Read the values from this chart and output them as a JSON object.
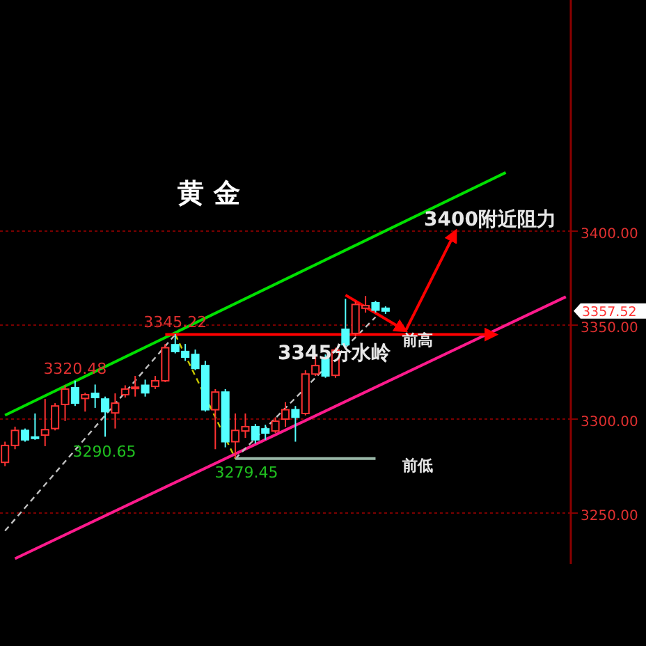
{
  "chart_data": {
    "type": "candlestick",
    "title": "黄 金",
    "categories": [
      null,
      null,
      null,
      null,
      null,
      null,
      null,
      null,
      null,
      null,
      null,
      null,
      null,
      null,
      null,
      null,
      null,
      null,
      null,
      null,
      null,
      null,
      null,
      null,
      null,
      null,
      null,
      null,
      null,
      null,
      null,
      null,
      null,
      null,
      null,
      null,
      null,
      null,
      null,
      null,
      null,
      null,
      null,
      null,
      null,
      null,
      null,
      null,
      null,
      null,
      null,
      null,
      null,
      null,
      null,
      null,
      null
    ],
    "ylim": [
      3223,
      3523
    ],
    "yticks": [
      {
        "value": 3250,
        "label": "3250.00"
      },
      {
        "value": 3300,
        "label": "3300.00"
      },
      {
        "value": 3350,
        "label": "3350.00"
      },
      {
        "value": 3400,
        "label": "3400.00"
      }
    ],
    "grid": "y",
    "ohlc": [
      [
        3277,
        3288,
        3275,
        3286
      ],
      [
        3286,
        3296,
        3284,
        3294
      ],
      [
        3294,
        3295,
        3288,
        3289
      ],
      [
        3290.5,
        3303,
        3289,
        3290
      ],
      [
        3291.5,
        3310.7,
        3285.6,
        3294.4
      ],
      [
        3295,
        3308.5,
        3294,
        3307
      ],
      [
        3307.8,
        3318,
        3299,
        3316
      ],
      [
        3316.7,
        3320.48,
        3307,
        3308.5
      ],
      [
        3311,
        3314,
        3304,
        3313
      ],
      [
        3313.7,
        3318.4,
        3306,
        3311.5
      ],
      [
        3310.7,
        3312,
        3290.65,
        3304
      ],
      [
        3303.3,
        3313.7,
        3295,
        3308.5
      ],
      [
        3313,
        3318,
        3311.5,
        3316
      ],
      [
        3316.6,
        3323,
        3312,
        3317
      ],
      [
        3318,
        3321,
        3312,
        3314
      ],
      [
        3317.4,
        3323,
        3316,
        3320.4
      ],
      [
        3320.4,
        3340,
        3319.7,
        3338
      ],
      [
        3339.6,
        3345.22,
        3335,
        3336
      ],
      [
        3336,
        3340,
        3331,
        3333
      ],
      [
        3334.4,
        3337,
        3326,
        3327
      ],
      [
        3328.5,
        3331,
        3304,
        3305
      ],
      [
        3305,
        3316,
        3284,
        3314.4
      ],
      [
        3314.4,
        3316,
        3285,
        3288
      ],
      [
        3288,
        3303,
        3279.45,
        3294
      ],
      [
        3293.7,
        3303,
        3290,
        3296
      ],
      [
        3296,
        3297.4,
        3287,
        3289
      ],
      [
        3294.8,
        3297,
        3289,
        3292.6
      ],
      [
        3293.7,
        3301,
        3292.6,
        3298.9
      ],
      [
        3300,
        3309,
        3296,
        3305
      ],
      [
        3305,
        3307,
        3288,
        3301
      ],
      [
        3303,
        3326,
        3302,
        3324
      ],
      [
        3324,
        3334,
        3323,
        3328.5
      ],
      [
        3332,
        3334.4,
        3322,
        3323
      ],
      [
        3323.3,
        3338,
        3322,
        3336.7
      ],
      [
        3347.8,
        3364,
        3338,
        3339.6
      ],
      [
        3345.6,
        3362.6,
        3344,
        3361
      ],
      [
        3359,
        3365.5,
        3356.7,
        3360.4
      ],
      [
        3361.9,
        3363,
        3356.7,
        3358
      ],
      [
        3359,
        3360,
        3356,
        3357.52
      ],
      null,
      null,
      null,
      null,
      null,
      null,
      null,
      null,
      null,
      null,
      null,
      null,
      null,
      null,
      null,
      null,
      null,
      null
    ],
    "colors": [
      "#ff3232",
      "#ff3232",
      "#54ffff",
      "#54ffff",
      "#ff3232",
      "#ff3232",
      "#ff3232",
      "#54ffff",
      "#ff3232",
      "#54ffff",
      "#54ffff",
      "#ff3232",
      "#ff3232",
      "#ff3232",
      "#54ffff",
      "#ff3232",
      "#ff3232",
      "#54ffff",
      "#54ffff",
      "#54ffff",
      "#54ffff",
      "#ff3232",
      "#54ffff",
      "#ff3232",
      "#ff3232",
      "#54ffff",
      "#54ffff",
      "#ff3232",
      "#ff3232",
      "#54ffff",
      "#ff3232",
      "#ff3232",
      "#54ffff",
      "#ff3232",
      "#54ffff",
      "#ff3232",
      "#ff3232",
      "#54ffff",
      "#54ffff",
      null,
      null,
      null,
      null,
      null,
      null,
      null,
      null,
      null,
      null,
      null,
      null,
      null,
      null,
      null,
      null,
      null,
      null
    ],
    "series": [
      {
        "type": "line",
        "color": "#00e000",
        "values": [
          3302.1,
          null,
          null,
          null,
          null,
          null,
          null,
          null,
          null,
          null,
          null,
          null,
          null,
          null,
          null,
          null,
          null,
          null,
          null,
          null,
          null,
          null,
          null,
          null,
          null,
          null,
          null,
          null,
          null,
          null,
          null,
          null,
          null,
          null,
          null,
          null,
          null,
          null,
          null,
          null,
          null,
          null,
          null,
          null,
          null,
          null,
          null,
          null,
          null,
          null,
          3431.2,
          null,
          null,
          null,
          null,
          null,
          null
        ]
      },
      {
        "type": "line",
        "color": "#ff1a8c",
        "values": [
          null,
          3225.8,
          null,
          null,
          null,
          null,
          null,
          null,
          null,
          null,
          null,
          null,
          null,
          null,
          null,
          null,
          null,
          null,
          null,
          null,
          null,
          null,
          null,
          null,
          null,
          null,
          null,
          null,
          null,
          null,
          null,
          null,
          null,
          null,
          null,
          null,
          null,
          null,
          null,
          null,
          null,
          null,
          null,
          null,
          null,
          null,
          null,
          null,
          null,
          null,
          null,
          null,
          null,
          null,
          null,
          null,
          3365.1
        ]
      },
      {
        "type": "line",
        "color": "#c0c0c0",
        "line_style": "dashed",
        "values": [
          3240.6,
          null,
          null,
          null,
          null,
          null,
          null,
          null,
          null,
          null,
          null,
          null,
          null,
          null,
          null,
          null,
          null,
          3345,
          null,
          null,
          null,
          null,
          null,
          null,
          null,
          null,
          null,
          null,
          null,
          null,
          null,
          null,
          null,
          null,
          null,
          null,
          null,
          null,
          null,
          null,
          null,
          null,
          null,
          null,
          null,
          null,
          null,
          null,
          null,
          null,
          null,
          null,
          null,
          null,
          null,
          null,
          null
        ]
      },
      {
        "type": "line",
        "color": "#c8c800",
        "line_style": "dashed",
        "values": [
          null,
          null,
          null,
          null,
          null,
          null,
          null,
          null,
          null,
          null,
          null,
          null,
          null,
          null,
          null,
          null,
          null,
          3345,
          null,
          null,
          null,
          null,
          null,
          3279,
          null,
          null,
          null,
          null,
          null,
          null,
          null,
          null,
          null,
          null,
          null,
          null,
          null,
          null,
          null,
          null,
          null,
          null,
          null,
          null,
          null,
          null,
          null,
          null,
          null,
          null,
          null,
          null,
          null,
          null,
          null,
          null,
          null
        ]
      },
      {
        "type": "line",
        "color": "#c0c0c0",
        "line_style": "dashed",
        "values": [
          null,
          null,
          null,
          null,
          null,
          null,
          null,
          null,
          null,
          null,
          null,
          null,
          null,
          null,
          null,
          null,
          null,
          null,
          null,
          null,
          null,
          null,
          null,
          3279,
          null,
          null,
          null,
          null,
          null,
          null,
          null,
          null,
          null,
          null,
          null,
          null,
          null,
          3354.3,
          null,
          null,
          null,
          null,
          null,
          null,
          null,
          null,
          null,
          null,
          null,
          null,
          null,
          null,
          null,
          null,
          null,
          null,
          null
        ]
      },
      {
        "type": "line",
        "color": "#9ab8a8",
        "values": [
          null,
          null,
          null,
          null,
          null,
          null,
          null,
          null,
          null,
          null,
          null,
          null,
          null,
          null,
          null,
          null,
          null,
          null,
          null,
          null,
          null,
          null,
          null,
          3279,
          null,
          null,
          null,
          null,
          null,
          null,
          null,
          null,
          null,
          null,
          null,
          null,
          null,
          3279,
          null,
          null,
          null,
          null,
          null,
          null,
          null,
          null,
          null,
          null,
          null,
          null,
          null,
          null,
          null,
          null,
          null,
          null,
          null
        ]
      },
      {
        "type": "line",
        "color": "#ff0000",
        "values": [
          null,
          null,
          null,
          null,
          null,
          null,
          null,
          null,
          null,
          null,
          null,
          null,
          null,
          null,
          null,
          null,
          3345,
          null,
          null,
          null,
          null,
          null,
          null,
          null,
          null,
          null,
          null,
          null,
          null,
          null,
          null,
          null,
          null,
          null,
          null,
          null,
          null,
          null,
          null,
          null,
          null,
          null,
          null,
          null,
          null,
          null,
          null,
          null,
          null,
          3345,
          null,
          null,
          null,
          null,
          null,
          null,
          null
        ]
      },
      {
        "type": "line",
        "color": "#ff0000",
        "values": [
          null,
          null,
          null,
          null,
          null,
          null,
          null,
          null,
          null,
          null,
          null,
          null,
          null,
          null,
          null,
          null,
          null,
          null,
          null,
          null,
          null,
          null,
          null,
          null,
          null,
          null,
          null,
          null,
          null,
          null,
          null,
          null,
          null,
          null,
          3366,
          null,
          null,
          null,
          null,
          null,
          3347,
          null,
          null,
          null,
          null,
          null,
          null,
          null,
          null,
          null,
          null,
          null,
          null,
          null,
          null,
          null,
          null
        ]
      },
      {
        "type": "line",
        "color": "#ff0000",
        "values": [
          null,
          null,
          null,
          null,
          null,
          null,
          null,
          null,
          null,
          null,
          null,
          null,
          null,
          null,
          null,
          null,
          null,
          null,
          null,
          null,
          null,
          null,
          null,
          null,
          null,
          null,
          null,
          null,
          null,
          null,
          null,
          null,
          null,
          null,
          null,
          null,
          null,
          null,
          null,
          null,
          3347,
          null,
          null,
          null,
          null,
          3400,
          null,
          null,
          null,
          null,
          null,
          null,
          null,
          null,
          null,
          null,
          null
        ]
      }
    ],
    "annotations": [
      {
        "text": "3345.22",
        "y": 3345.22
      },
      {
        "text": "3320.48",
        "y": 3320.48
      },
      {
        "text": "3279.45",
        "y": 3279.45
      },
      "3290.65",
      "3357.52",
      "3400附近阻力",
      "3345分水岭",
      "前高",
      "前低"
    ]
  }
}
